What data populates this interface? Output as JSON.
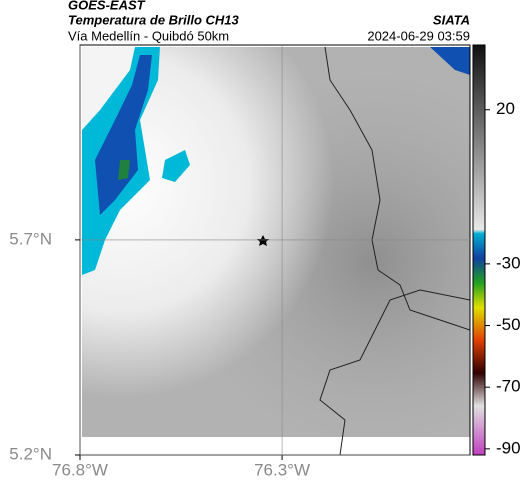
{
  "chart_data": {
    "type": "map",
    "title": "GOES-EAST",
    "subtitle": "Temperatura de Brillo CH13",
    "source": "SIATA",
    "location": "Vía Medellín - Quibdó 50km",
    "timestamp": "2024-06-29 03:59",
    "xlim": [
      -76.8,
      -75.835
    ],
    "ylim": [
      5.2,
      6.153
    ],
    "xticks": [
      {
        "value": -76.8,
        "label": "76.8°W"
      },
      {
        "value": -76.3,
        "label": "76.3°W"
      }
    ],
    "yticks": [
      {
        "value": 5.2,
        "label": "5.2°N"
      },
      {
        "value": 5.7,
        "label": "5.7°N"
      }
    ],
    "grid": true,
    "colorbar": {
      "lim": [
        -92,
        41
      ],
      "ticks": [
        20,
        -30,
        -50,
        -70,
        -90
      ]
    }
  }
}
